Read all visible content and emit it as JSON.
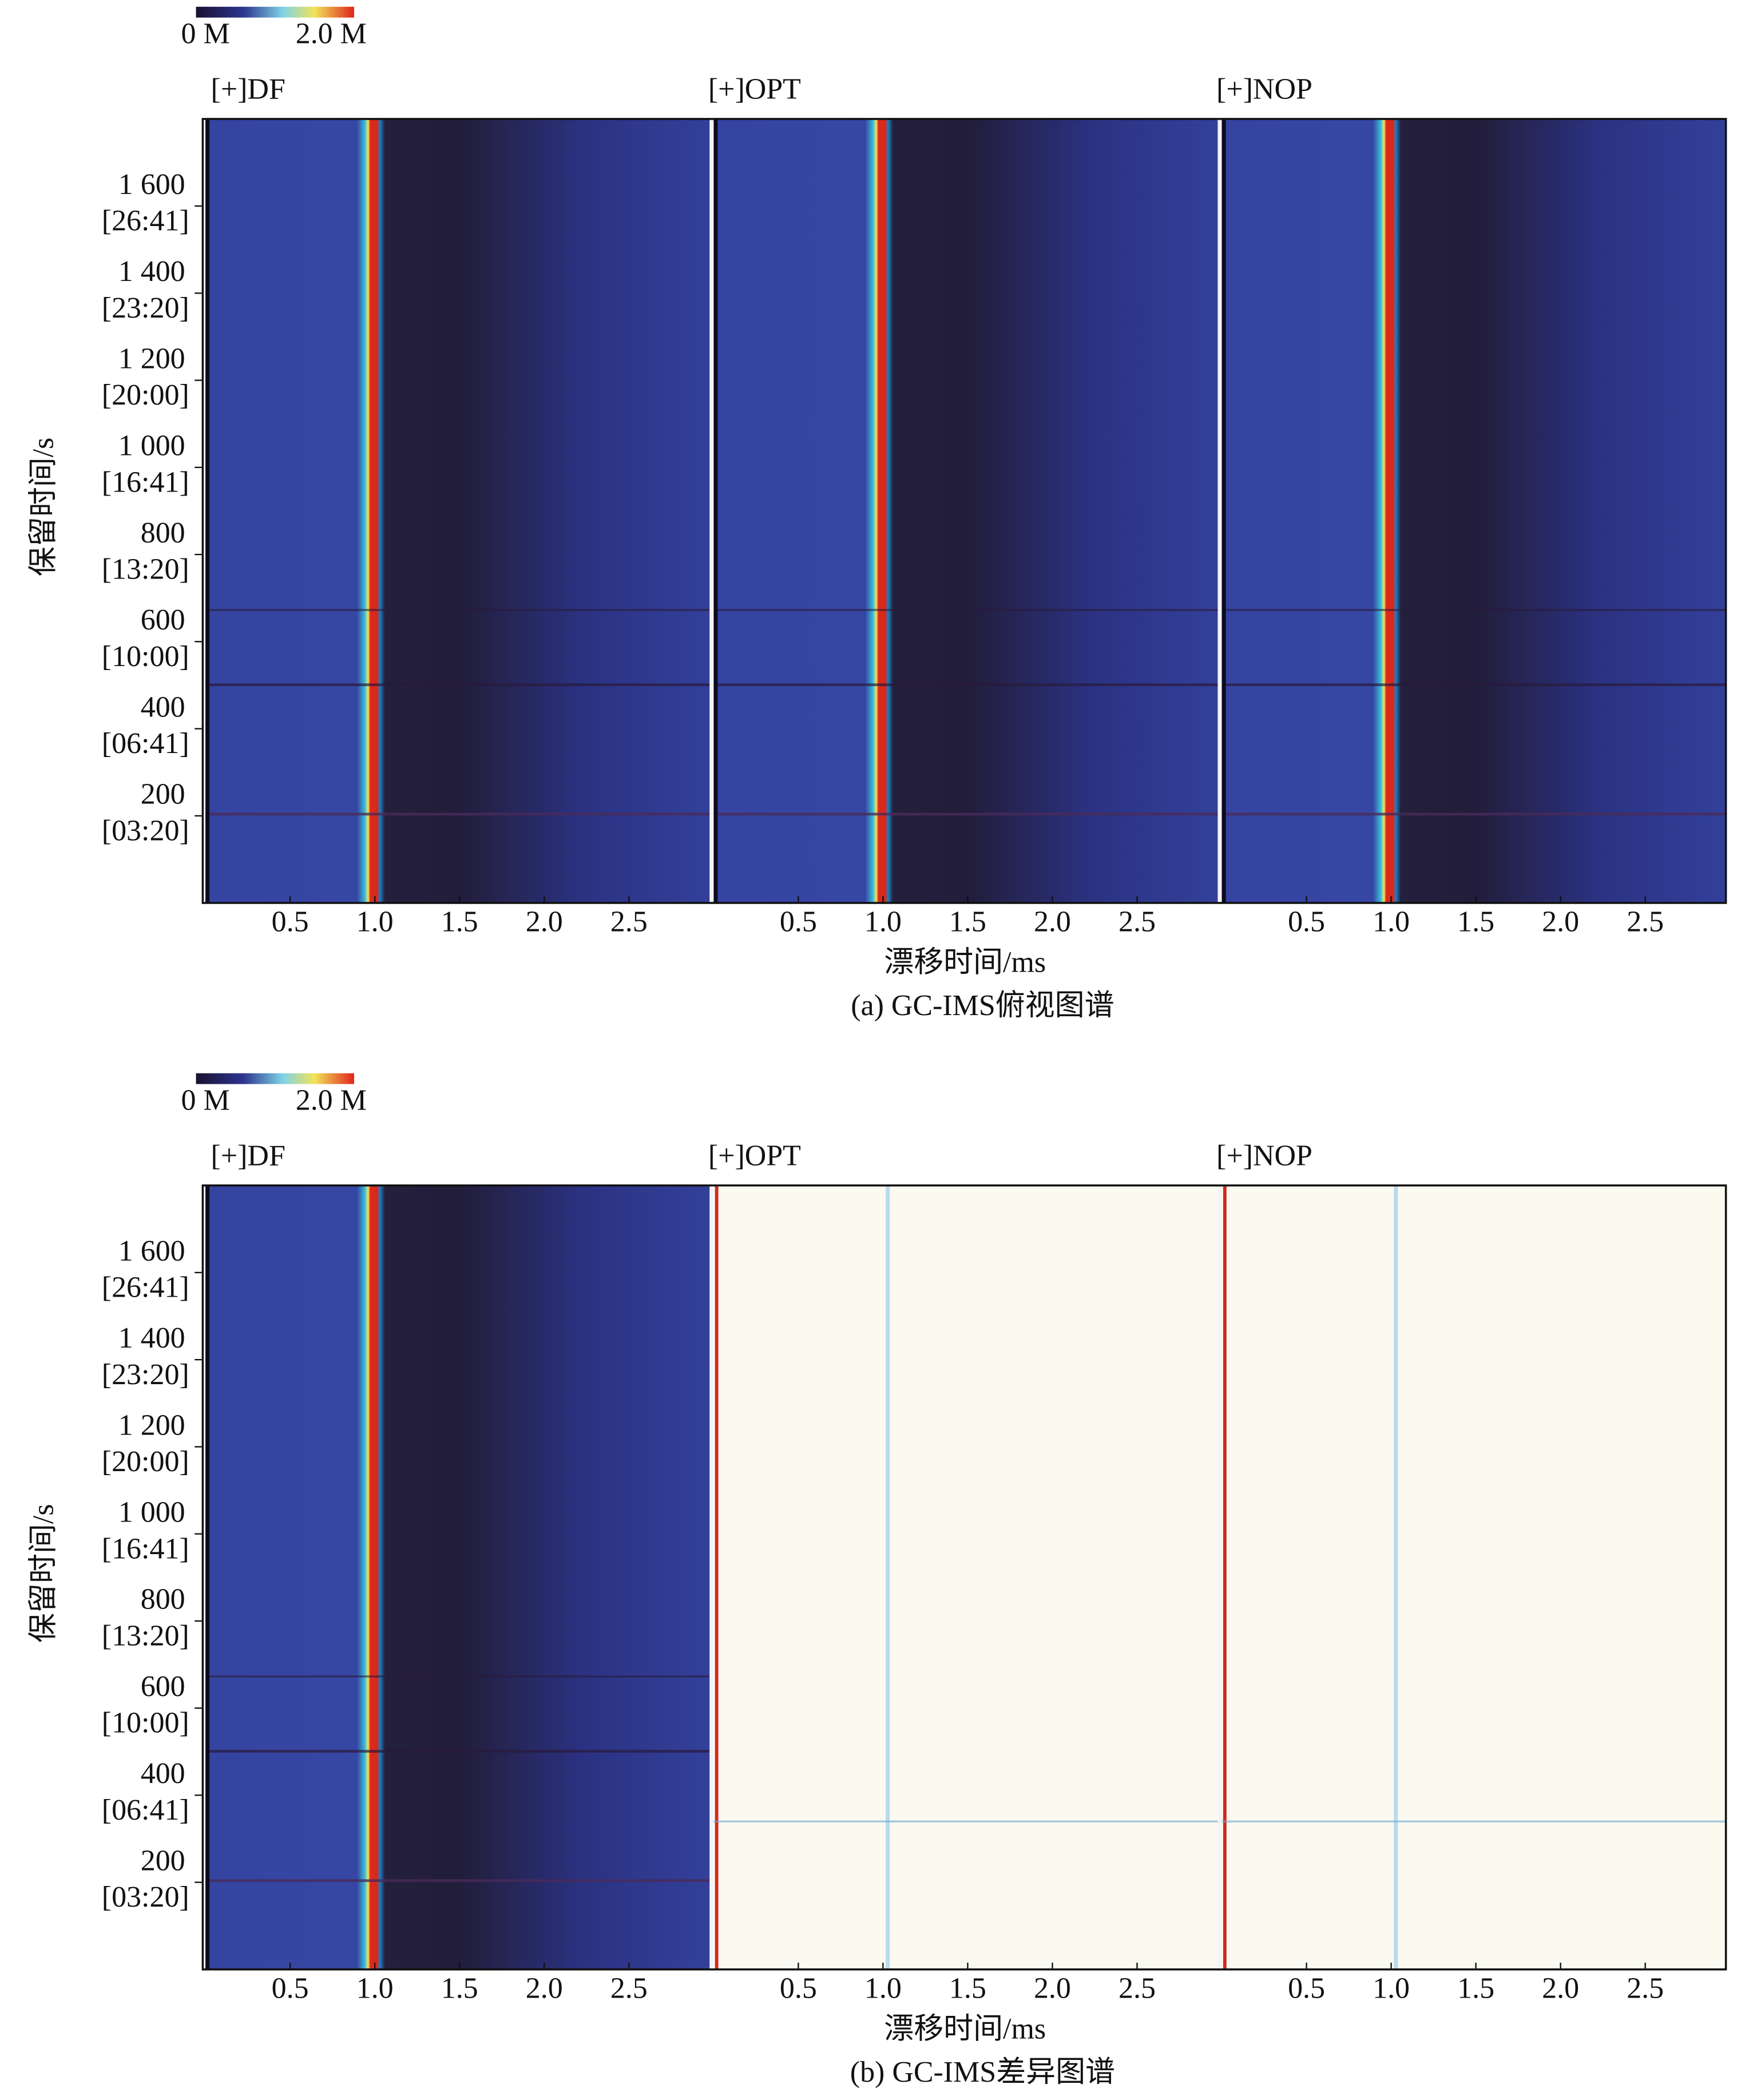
{
  "figures": [
    {
      "colorbar": {
        "min_label": "0 M",
        "max_label": "2.0 M"
      },
      "panels": [
        {
          "title": "[+]DF",
          "style": "spectrum"
        },
        {
          "title": "[+]OPT",
          "style": "spectrum"
        },
        {
          "title": "[+]NOP",
          "style": "spectrum"
        }
      ],
      "x_axis": {
        "label": "漂移时间/ms",
        "xlim": [
          0,
          3
        ],
        "xticks": [
          0.5,
          {
            "value": 1,
            "label": "1.0"
          },
          1.5,
          {
            "value": 2,
            "label": "2.0"
          },
          2.5
        ]
      },
      "y_axis": {
        "label": "保留时间/s",
        "ylim": [
          0,
          1800
        ],
        "yticks": [
          {
            "value": 200,
            "label": "200",
            "time": "[03:20]"
          },
          {
            "value": 400,
            "label": "400",
            "time": "[06:41]"
          },
          {
            "value": 600,
            "label": "600",
            "time": "[10:00]"
          },
          {
            "value": 800,
            "label": "800",
            "time": "[13:20]"
          },
          {
            "value": 1000,
            "label": "1 000",
            "time": "[16:41]"
          },
          {
            "value": 1200,
            "label": "1 200",
            "time": "[20:00]"
          },
          {
            "value": 1400,
            "label": "1 400",
            "time": "[23:20]"
          },
          {
            "value": 1600,
            "label": "1 600",
            "time": "[26:41]"
          }
        ]
      },
      "caption": "(a) GC-IMS俯视图谱"
    },
    {
      "colorbar": {
        "min_label": "0 M",
        "max_label": "2.0 M"
      },
      "panels": [
        {
          "title": "[+]DF",
          "style": "spectrum"
        },
        {
          "title": "[+]OPT",
          "style": "difference"
        },
        {
          "title": "[+]NOP",
          "style": "difference"
        }
      ],
      "x_axis": {
        "label": "漂移时间/ms",
        "xlim": [
          0,
          3
        ],
        "xticks": [
          0.5,
          {
            "value": 1,
            "label": "1.0"
          },
          1.5,
          {
            "value": 2,
            "label": "2.0"
          },
          2.5
        ]
      },
      "y_axis": {
        "label": "保留时间/s",
        "ylim": [
          0,
          1800
        ],
        "yticks": [
          {
            "value": 200,
            "label": "200",
            "time": "[03:20]"
          },
          {
            "value": 400,
            "label": "400",
            "time": "[06:41]"
          },
          {
            "value": 600,
            "label": "600",
            "time": "[10:00]"
          },
          {
            "value": 800,
            "label": "800",
            "time": "[13:20]"
          },
          {
            "value": 1000,
            "label": "1 000",
            "time": "[16:41]"
          },
          {
            "value": 1200,
            "label": "1 200",
            "time": "[20:00]"
          },
          {
            "value": 1400,
            "label": "1 400",
            "time": "[23:20]"
          },
          {
            "value": 1600,
            "label": "1 600",
            "time": "[26:41]"
          }
        ]
      },
      "caption": "(b) GC-IMS差异图谱"
    }
  ]
}
